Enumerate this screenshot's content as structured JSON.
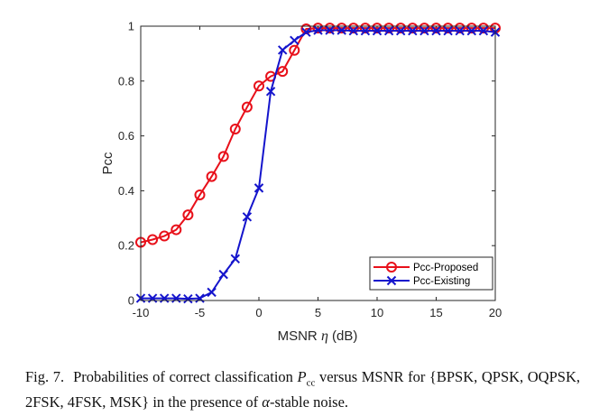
{
  "chart_data": {
    "type": "line",
    "xlabel_prefix": "MSNR ",
    "xlabel_symbol": "η",
    "xlabel_suffix": " (dB)",
    "ylabel": "Pcc",
    "xlim": [
      -10,
      20
    ],
    "ylim": [
      0,
      1
    ],
    "x_ticks": [
      -10,
      -5,
      0,
      5,
      10,
      15,
      20
    ],
    "y_ticks": [
      0,
      0.2,
      0.4,
      0.6,
      0.8,
      1
    ],
    "x_tick_labels": [
      "-10",
      "-5",
      "0",
      "5",
      "10",
      "15",
      "20"
    ],
    "y_tick_labels": [
      "0",
      "0.2",
      "0.4",
      "0.6",
      "0.8",
      "1"
    ],
    "grid": false,
    "legend_position": "bottom-right",
    "x": [
      -10,
      -9,
      -8,
      -7,
      -6,
      -5,
      -4,
      -3,
      -2,
      -1,
      0,
      1,
      2,
      3,
      4,
      5,
      6,
      7,
      8,
      9,
      10,
      11,
      12,
      13,
      14,
      15,
      16,
      17,
      18,
      19,
      20
    ],
    "series": [
      {
        "name": "Pcc-Proposed",
        "color": "#e8101a",
        "marker": "circle",
        "values": [
          0.212,
          0.222,
          0.235,
          0.258,
          0.312,
          0.385,
          0.452,
          0.525,
          0.625,
          0.705,
          0.782,
          0.817,
          0.835,
          0.912,
          0.99,
          0.993,
          0.993,
          0.993,
          0.993,
          0.993,
          0.993,
          0.993,
          0.993,
          0.993,
          0.993,
          0.993,
          0.993,
          0.993,
          0.993,
          0.993,
          0.993
        ]
      },
      {
        "name": "Pcc-Existing",
        "color": "#1414cc",
        "marker": "x",
        "values": [
          0.008,
          0.008,
          0.008,
          0.008,
          0.006,
          0.008,
          0.03,
          0.095,
          0.152,
          0.305,
          0.41,
          0.762,
          0.913,
          0.948,
          0.978,
          0.985,
          0.985,
          0.985,
          0.983,
          0.983,
          0.983,
          0.983,
          0.983,
          0.983,
          0.983,
          0.983,
          0.983,
          0.983,
          0.983,
          0.983,
          0.978
        ]
      }
    ]
  },
  "caption": {
    "label": "Fig. 7.",
    "part1": "Probabilities of correct classification ",
    "pcc_main": "P",
    "pcc_sub": "cc",
    "part2": " versus MSNR for {BPSK, QPSK, OQPSK, 2FSK, 4FSK, MSK} in the presence of ",
    "alpha": "α",
    "part3": "-stable noise."
  }
}
